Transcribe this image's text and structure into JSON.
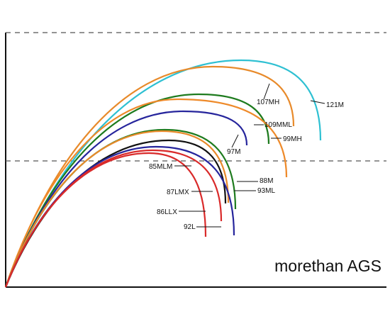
{
  "chart_data": {
    "type": "line",
    "title": "",
    "xlabel": "",
    "ylabel": "",
    "grid": false,
    "legend": "none",
    "brand": "morethan AGS",
    "series": [
      {
        "name": "121M",
        "color": "#2ec0d2",
        "peak": [
          340,
          85
        ],
        "end": [
          452,
          198
        ],
        "label_text": "121M"
      },
      {
        "name": "107MH",
        "color": "#e88a2a",
        "peak": [
          300,
          94
        ],
        "end": [
          414,
          178
        ],
        "label_text": "107MH"
      },
      {
        "name": "109MML",
        "color": "#1e7b1e",
        "peak": [
          280,
          133
        ],
        "end": [
          379,
          203
        ],
        "label_text": "109MML"
      },
      {
        "name": "99MH",
        "color": "#ee8a2a",
        "peak": [
          250,
          140
        ],
        "end": [
          404,
          250
        ],
        "label_text": "99MH"
      },
      {
        "name": "97M",
        "color": "#26259c",
        "peak": [
          258,
          157
        ],
        "end": [
          348,
          205
        ],
        "label_text": "97M"
      },
      {
        "name": "88M",
        "color": "#1e7b1e",
        "peak": [
          232,
          183
        ],
        "end": [
          332,
          295
        ],
        "label_text": "88M"
      },
      {
        "name": "93ML",
        "color": "#e88a2a",
        "peak": [
          228,
          185
        ],
        "end": [
          322,
          286
        ],
        "label_text": "93ML"
      },
      {
        "name": "85MLM",
        "color": "#111111",
        "peak": [
          238,
          198
        ],
        "end": [
          318,
          287
        ],
        "label_text": "85MLM"
      },
      {
        "name": "87LMX",
        "color": "#26259c",
        "peak": [
          220,
          207
        ],
        "end": [
          330,
          332
        ],
        "label_text": "87LMX"
      },
      {
        "name": "86LLX",
        "color": "#d92a2a",
        "peak": [
          215,
          212
        ],
        "end": [
          312,
          312
        ],
        "label_text": "86LLX"
      },
      {
        "name": "92L",
        "color": "#d92a2a",
        "peak": [
          210,
          216
        ],
        "end": [
          290,
          334
        ],
        "label_text": "92L"
      }
    ]
  }
}
